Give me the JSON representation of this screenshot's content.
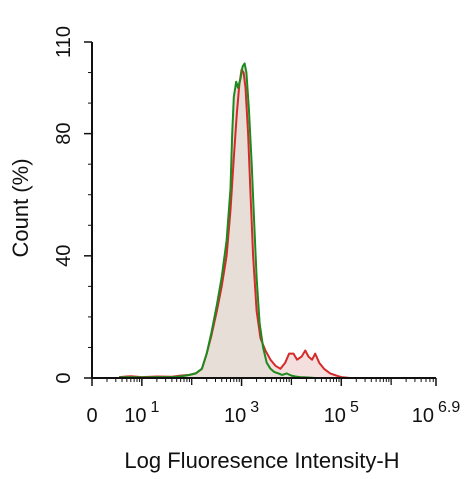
{
  "chart_data": {
    "type": "area",
    "title": "",
    "xlabel": "Log Fluoresence Intensity-H",
    "ylabel": "Count  (%)",
    "xscale": "log",
    "xlim": [
      1,
      7943282
    ],
    "ylim": [
      0,
      110
    ],
    "grid": false,
    "legend": "none",
    "x_ticks": [
      {
        "value": 1,
        "base": "0",
        "exp": ""
      },
      {
        "value": 10,
        "base": "10",
        "exp": "1"
      },
      {
        "value": 1000,
        "base": "10",
        "exp": "3"
      },
      {
        "value": 100000,
        "base": "10",
        "exp": "5"
      },
      {
        "value": 7943282,
        "base": "10",
        "exp": "6.9"
      }
    ],
    "y_ticks": [
      0,
      40,
      80,
      110
    ],
    "colors": {
      "fill": "#e6ddd6",
      "fill_outline": "#b8a99c",
      "series_red": "#d42a2a",
      "series_green": "#1e8a1e"
    },
    "series": [
      {
        "key": "red",
        "color": "#d42a2a",
        "fill": "#f3dcdc",
        "x": [
          3.5,
          6,
          10,
          20,
          40,
          60,
          90,
          120,
          160,
          200,
          250,
          320,
          400,
          500,
          600,
          700,
          800,
          900,
          1000,
          1100,
          1200,
          1350,
          1500,
          1700,
          2000,
          2400,
          3000,
          3800,
          4800,
          6000,
          7500,
          9000,
          11000,
          13000,
          16000,
          19000,
          22000,
          26000,
          30000,
          36000,
          45000,
          60000,
          80000,
          100000,
          150000
        ],
        "y": [
          0.3,
          0.6,
          0.3,
          0.5,
          0.4,
          0.8,
          1,
          1.5,
          3,
          8,
          14,
          22,
          30,
          40,
          55,
          72,
          86,
          96,
          101,
          100,
          95,
          80,
          62,
          40,
          22,
          13,
          9,
          6,
          4,
          3,
          5,
          8,
          8,
          6,
          7,
          9,
          7,
          6,
          8,
          5,
          3,
          1.5,
          0.8,
          0.3,
          0
        ]
      },
      {
        "key": "green",
        "color": "#1e8a1e",
        "fill": "#e6ddd6",
        "x": [
          3.5,
          6,
          10,
          20,
          40,
          60,
          90,
          120,
          160,
          200,
          250,
          320,
          400,
          500,
          600,
          650,
          700,
          780,
          850,
          950,
          1050,
          1150,
          1250,
          1400,
          1600,
          1800,
          2000,
          2300,
          2700,
          3200,
          3800,
          4500,
          5500,
          6500,
          8000,
          10000,
          12000,
          15000,
          20000,
          30000
        ],
        "y": [
          0.2,
          0.3,
          0.2,
          0.3,
          0.3,
          0.5,
          1,
          1.5,
          3,
          8,
          15,
          24,
          33,
          45,
          62,
          80,
          92,
          97,
          95,
          98,
          102,
          103,
          100,
          88,
          70,
          50,
          33,
          18,
          10,
          5,
          3,
          2,
          1.5,
          1,
          1.5,
          0.8,
          0.5,
          0.3,
          0.2,
          0
        ]
      }
    ]
  }
}
